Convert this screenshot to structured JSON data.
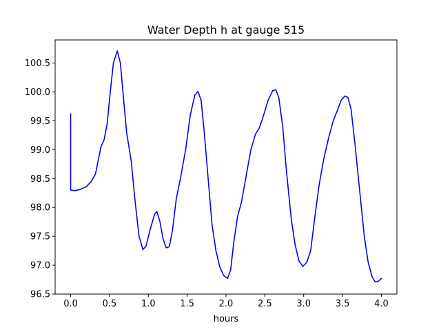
{
  "chart_data": {
    "type": "line",
    "title": "Water Depth h at gauge 515",
    "xlabel": "hours",
    "ylabel": "",
    "xlim": [
      -0.2,
      4.2
    ],
    "ylim": [
      96.5,
      100.9
    ],
    "grid": false,
    "xticks": [
      0.0,
      0.5,
      1.0,
      1.5,
      2.0,
      2.5,
      3.0,
      3.5,
      4.0
    ],
    "xtick_labels": [
      "0.0",
      "0.5",
      "1.0",
      "1.5",
      "2.0",
      "2.5",
      "3.0",
      "3.5",
      "4.0"
    ],
    "yticks": [
      96.5,
      97.0,
      97.5,
      98.0,
      98.5,
      99.0,
      99.5,
      100.0,
      100.5
    ],
    "ytick_labels": [
      "96.5",
      "97.0",
      "97.5",
      "98.0",
      "98.5",
      "99.0",
      "99.5",
      "100.0",
      "100.5"
    ],
    "series": [
      {
        "color": "#0000ff",
        "points": [
          [
            0.0,
            99.62
          ],
          [
            0.0,
            98.3
          ],
          [
            0.05,
            98.29
          ],
          [
            0.12,
            98.31
          ],
          [
            0.2,
            98.36
          ],
          [
            0.26,
            98.44
          ],
          [
            0.32,
            98.58
          ],
          [
            0.36,
            98.85
          ],
          [
            0.39,
            99.05
          ],
          [
            0.43,
            99.17
          ],
          [
            0.47,
            99.45
          ],
          [
            0.51,
            100.0
          ],
          [
            0.55,
            100.5
          ],
          [
            0.6,
            100.71
          ],
          [
            0.64,
            100.5
          ],
          [
            0.68,
            99.9
          ],
          [
            0.72,
            99.3
          ],
          [
            0.78,
            98.8
          ],
          [
            0.83,
            98.1
          ],
          [
            0.88,
            97.5
          ],
          [
            0.93,
            97.27
          ],
          [
            0.97,
            97.33
          ],
          [
            1.02,
            97.6
          ],
          [
            1.08,
            97.88
          ],
          [
            1.11,
            97.93
          ],
          [
            1.15,
            97.75
          ],
          [
            1.19,
            97.45
          ],
          [
            1.23,
            97.3
          ],
          [
            1.27,
            97.32
          ],
          [
            1.31,
            97.6
          ],
          [
            1.36,
            98.15
          ],
          [
            1.42,
            98.55
          ],
          [
            1.48,
            99.0
          ],
          [
            1.54,
            99.6
          ],
          [
            1.6,
            99.95
          ],
          [
            1.64,
            100.01
          ],
          [
            1.68,
            99.85
          ],
          [
            1.72,
            99.3
          ],
          [
            1.77,
            98.5
          ],
          [
            1.82,
            97.7
          ],
          [
            1.87,
            97.25
          ],
          [
            1.92,
            96.97
          ],
          [
            1.97,
            96.82
          ],
          [
            2.02,
            96.77
          ],
          [
            2.06,
            96.92
          ],
          [
            2.1,
            97.4
          ],
          [
            2.15,
            97.85
          ],
          [
            2.2,
            98.1
          ],
          [
            2.26,
            98.55
          ],
          [
            2.32,
            99.0
          ],
          [
            2.38,
            99.27
          ],
          [
            2.43,
            99.38
          ],
          [
            2.48,
            99.58
          ],
          [
            2.54,
            99.85
          ],
          [
            2.6,
            100.02
          ],
          [
            2.64,
            100.04
          ],
          [
            2.68,
            99.9
          ],
          [
            2.73,
            99.4
          ],
          [
            2.78,
            98.6
          ],
          [
            2.84,
            97.8
          ],
          [
            2.89,
            97.35
          ],
          [
            2.94,
            97.07
          ],
          [
            2.99,
            96.98
          ],
          [
            3.04,
            97.05
          ],
          [
            3.09,
            97.25
          ],
          [
            3.14,
            97.8
          ],
          [
            3.2,
            98.4
          ],
          [
            3.26,
            98.85
          ],
          [
            3.32,
            99.2
          ],
          [
            3.38,
            99.5
          ],
          [
            3.44,
            99.7
          ],
          [
            3.48,
            99.85
          ],
          [
            3.53,
            99.93
          ],
          [
            3.57,
            99.9
          ],
          [
            3.61,
            99.7
          ],
          [
            3.66,
            99.1
          ],
          [
            3.72,
            98.3
          ],
          [
            3.78,
            97.5
          ],
          [
            3.83,
            97.05
          ],
          [
            3.88,
            96.8
          ],
          [
            3.92,
            96.71
          ],
          [
            3.96,
            96.72
          ],
          [
            4.0,
            96.77
          ]
        ]
      }
    ]
  }
}
